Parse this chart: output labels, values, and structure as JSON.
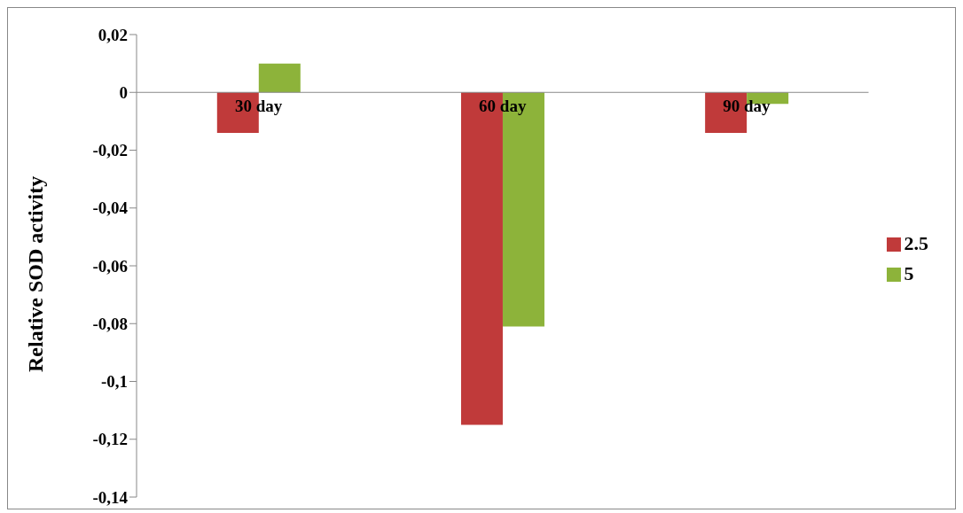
{
  "chart_data": {
    "type": "bar",
    "ylabel": "Relative SOD activity",
    "categories": [
      "30 day",
      "60 day",
      "90 day"
    ],
    "series": [
      {
        "name": "2.5",
        "color": "#c03a3a",
        "values": [
          -0.014,
          -0.115,
          -0.014
        ]
      },
      {
        "name": "5",
        "color": "#8db33a",
        "values": [
          0.01,
          -0.081,
          -0.004
        ]
      }
    ],
    "ylim": [
      -0.14,
      0.02
    ],
    "yticks": [
      {
        "value": -0.14,
        "label": "-0,14"
      },
      {
        "value": -0.12,
        "label": "-0,12"
      },
      {
        "value": -0.1,
        "label": "-0,1"
      },
      {
        "value": -0.08,
        "label": "-0,08"
      },
      {
        "value": -0.06,
        "label": "-0,06"
      },
      {
        "value": -0.04,
        "label": "-0,04"
      },
      {
        "value": -0.02,
        "label": "-0,02"
      },
      {
        "value": 0,
        "label": "0"
      },
      {
        "value": 0.02,
        "label": "0,02"
      }
    ],
    "legend": "right"
  }
}
